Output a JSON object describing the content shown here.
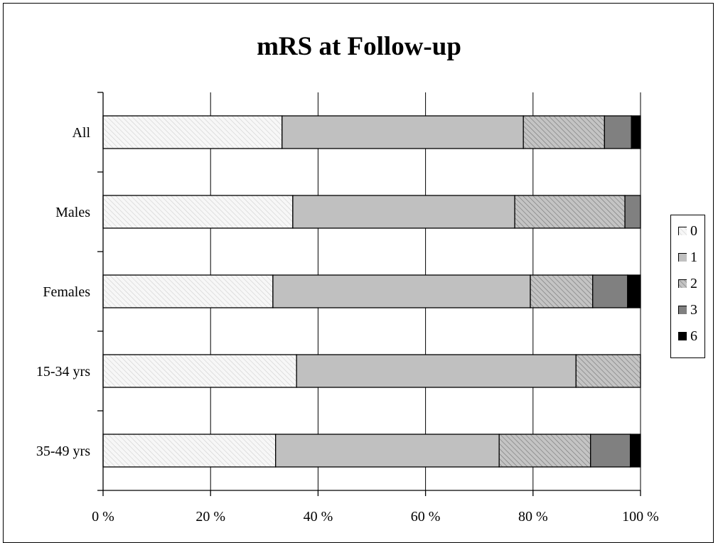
{
  "chart_data": {
    "type": "bar",
    "orientation": "horizontal",
    "stacked": "percent",
    "title": "mRS at Follow-up",
    "categories": [
      "All",
      "Males",
      "Females",
      "15-34 yrs",
      "35-49 yrs"
    ],
    "series": [
      {
        "name": "0",
        "values": [
          33.3,
          35.3,
          31.6,
          36.0,
          32.1
        ],
        "color": "#f4f4f4",
        "pattern": "light-hatch"
      },
      {
        "name": "1",
        "values": [
          44.9,
          41.3,
          47.9,
          52.0,
          41.6
        ],
        "color": "#c0c0c0",
        "pattern": "solid"
      },
      {
        "name": "2",
        "values": [
          15.1,
          20.5,
          11.6,
          12.0,
          17.0
        ],
        "color": "#a8a8a8",
        "pattern": "dark-hatch"
      },
      {
        "name": "3",
        "values": [
          5.0,
          2.9,
          6.5,
          0.0,
          7.4
        ],
        "color": "#808080",
        "pattern": "solid"
      },
      {
        "name": "6",
        "values": [
          1.7,
          0.0,
          2.4,
          0.0,
          1.9
        ],
        "color": "#000000",
        "pattern": "solid"
      }
    ],
    "xlim": [
      0,
      100
    ],
    "x_ticks": [
      "0 %",
      "20 %",
      "40 %",
      "60 %",
      "80 %",
      "100 %"
    ],
    "grid": "vertical",
    "legend": "right"
  }
}
